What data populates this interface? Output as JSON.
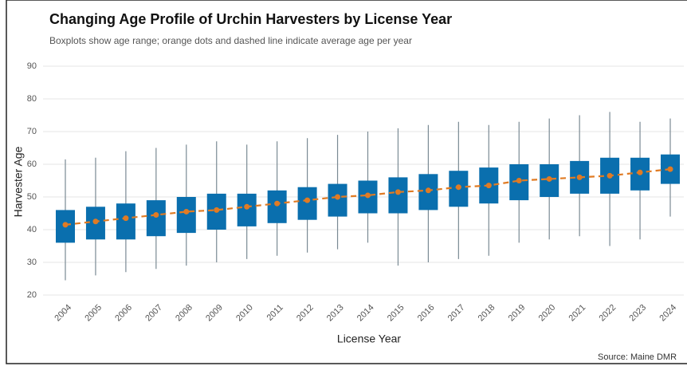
{
  "chart_data": {
    "type": "box",
    "title": "Changing Age Profile of Urchin Harvesters by License Year",
    "subtitle": "Boxplots show age range; orange dots and dashed line indicate average age per year",
    "x_label": "License Year",
    "y_label": "Harvester Age",
    "source": "Source: Maine DMR",
    "categories": [
      "2004",
      "2005",
      "2006",
      "2007",
      "2008",
      "2009",
      "2010",
      "2011",
      "2012",
      "2013",
      "2014",
      "2015",
      "2016",
      "2017",
      "2018",
      "2019",
      "2020",
      "2021",
      "2022",
      "2023",
      "2024"
    ],
    "min": [
      24.5,
      26,
      27,
      28,
      29,
      30,
      31,
      32,
      33,
      34,
      36,
      29,
      30,
      31,
      32,
      36,
      37,
      38,
      35,
      37,
      44
    ],
    "q1": [
      36,
      37,
      37,
      38,
      39,
      40,
      41,
      42,
      43,
      44,
      45,
      45,
      46,
      47,
      48,
      49,
      50,
      51,
      51,
      52,
      54
    ],
    "q3": [
      46,
      47,
      48,
      49,
      50,
      51,
      51,
      52,
      53,
      54,
      55,
      56,
      57,
      58,
      59,
      60,
      60,
      61,
      62,
      62,
      63
    ],
    "max": [
      61.5,
      62,
      64,
      65,
      66,
      67,
      66,
      67,
      68,
      69,
      70,
      71,
      72,
      73,
      72,
      73,
      74,
      75,
      76,
      73,
      74
    ],
    "mean": [
      41.5,
      42.5,
      43.5,
      44.5,
      45.5,
      46,
      47,
      48,
      49,
      50,
      50.5,
      51.5,
      52,
      53,
      53.5,
      55,
      55.5,
      56,
      56.5,
      57.5,
      58.5
    ],
    "box_color": "#0a6fae",
    "mean_color": "#e07b24",
    "whisker_color": "#7a8a94",
    "ylim": [
      20,
      90
    ],
    "yticks": [
      20,
      30,
      40,
      50,
      60,
      70,
      80,
      90
    ],
    "grid": true
  }
}
